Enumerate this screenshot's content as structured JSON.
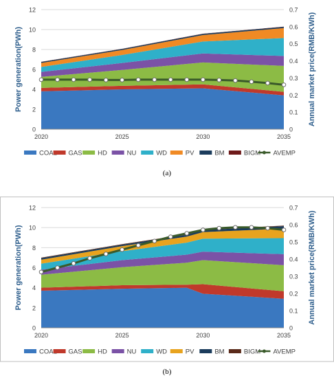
{
  "panels": [
    {
      "caption": "(a)",
      "chart_data": {
        "type": "area",
        "x": [
          2020,
          2021,
          2022,
          2023,
          2024,
          2025,
          2026,
          2027,
          2028,
          2029,
          2030,
          2031,
          2032,
          2033,
          2034,
          2035
        ],
        "xticks": [
          "2020",
          "2025",
          "2030",
          "2035"
        ],
        "xlim": [
          2020,
          2035
        ],
        "ylabel": "Power generation(PWh)",
        "ylim": [
          0,
          12
        ],
        "yticks": [
          "0",
          "2",
          "4",
          "6",
          "8",
          "10",
          "12"
        ],
        "y2label": "Annual market price(RMB/KWh)",
        "y2lim": [
          0,
          0.7
        ],
        "y2ticks": [
          "0",
          "0.1",
          "0.2",
          "0.3",
          "0.4",
          "0.5",
          "0.6",
          "0.7"
        ],
        "stacked_series": [
          {
            "name": "COAL",
            "color": "#3a78c0",
            "points": [
              [
                2020,
                3.8
              ],
              [
                2025,
                4.0
              ],
              [
                2030,
                4.1
              ],
              [
                2035,
                3.4
              ]
            ]
          },
          {
            "name": "GAS",
            "color": "#c0392b",
            "points": [
              [
                2020,
                0.35
              ],
              [
                2025,
                0.35
              ],
              [
                2030,
                0.4
              ],
              [
                2035,
                0.35
              ]
            ]
          },
          {
            "name": "HD",
            "color": "#8cbb45",
            "points": [
              [
                2020,
                1.1
              ],
              [
                2025,
                1.6
              ],
              [
                2030,
                2.2
              ],
              [
                2035,
                2.6
              ]
            ]
          },
          {
            "name": "NU",
            "color": "#7b52a6",
            "points": [
              [
                2020,
                0.5
              ],
              [
                2025,
                0.7
              ],
              [
                2030,
                0.9
              ],
              [
                2035,
                1.0
              ]
            ]
          },
          {
            "name": "WD",
            "color": "#2fb0c9",
            "points": [
              [
                2020,
                0.5
              ],
              [
                2025,
                0.8
              ],
              [
                2030,
                1.2
              ],
              [
                2035,
                1.8
              ]
            ]
          },
          {
            "name": "PV",
            "color": "#f08a24",
            "points": [
              [
                2020,
                0.4
              ],
              [
                2025,
                0.5
              ],
              [
                2030,
                0.65
              ],
              [
                2035,
                1.0
              ]
            ]
          },
          {
            "name": "BM",
            "color": "#1b3c5c",
            "points": [
              [
                2020,
                0.1
              ],
              [
                2025,
                0.1
              ],
              [
                2030,
                0.12
              ],
              [
                2035,
                0.12
              ]
            ]
          },
          {
            "name": "BIGM",
            "color": "#6e1a1a",
            "points": [
              [
                2020,
                0.02
              ],
              [
                2025,
                0.02
              ],
              [
                2030,
                0.02
              ],
              [
                2035,
                0.02
              ]
            ]
          }
        ],
        "price_series": {
          "name": "AVEMP",
          "axis": "right",
          "color": "#3a5a2a",
          "x": [
            2020,
            2021,
            2022,
            2023,
            2024,
            2025,
            2026,
            2027,
            2028,
            2029,
            2030,
            2031,
            2032,
            2033,
            2034,
            2035
          ],
          "values": [
            0.29,
            0.29,
            0.29,
            0.29,
            0.288,
            0.288,
            0.29,
            0.29,
            0.29,
            0.29,
            0.29,
            0.288,
            0.285,
            0.278,
            0.27,
            0.26
          ]
        },
        "legend": [
          "COAL",
          "GAS",
          "HD",
          "NU",
          "WD",
          "PV",
          "BM",
          "BIGM",
          "AVEMP"
        ],
        "legend_position": "bottom"
      }
    },
    {
      "caption": "(b)",
      "chart_data": {
        "type": "area",
        "x": [
          2020,
          2021,
          2022,
          2023,
          2024,
          2025,
          2026,
          2027,
          2028,
          2029,
          2030,
          2031,
          2032,
          2033,
          2034,
          2035
        ],
        "xticks": [
          "2020",
          "2025",
          "2030",
          "2035"
        ],
        "xlim": [
          2020,
          2035
        ],
        "ylabel": "Power generation(PWh)",
        "ylim": [
          0,
          12
        ],
        "yticks": [
          "0",
          "2",
          "4",
          "6",
          "8",
          "10",
          "12"
        ],
        "y2label": "Annual market price(RMB/KWh)",
        "y2lim": [
          0,
          0.7
        ],
        "y2ticks": [
          "0",
          "0.1",
          "0.2",
          "0.3",
          "0.4",
          "0.5",
          "0.6",
          "0.7"
        ],
        "stacked_series": [
          {
            "name": "COAL",
            "color": "#3a78c0",
            "points": [
              [
                2020,
                3.7
              ],
              [
                2025,
                3.9
              ],
              [
                2029,
                4.0
              ],
              [
                2030,
                3.4
              ],
              [
                2035,
                2.9
              ]
            ]
          },
          {
            "name": "GAS",
            "color": "#c0392b",
            "points": [
              [
                2020,
                0.3
              ],
              [
                2025,
                0.35
              ],
              [
                2029,
                0.3
              ],
              [
                2030,
                0.95
              ],
              [
                2035,
                0.75
              ]
            ]
          },
          {
            "name": "HD",
            "color": "#8cbb45",
            "points": [
              [
                2020,
                1.3
              ],
              [
                2025,
                1.8
              ],
              [
                2029,
                2.2
              ],
              [
                2030,
                2.4
              ],
              [
                2035,
                2.6
              ]
            ]
          },
          {
            "name": "NU",
            "color": "#7b52a6",
            "points": [
              [
                2020,
                0.5
              ],
              [
                2025,
                0.7
              ],
              [
                2029,
                0.8
              ],
              [
                2030,
                0.85
              ],
              [
                2035,
                1.1
              ]
            ]
          },
          {
            "name": "WD",
            "color": "#2fb0c9",
            "points": [
              [
                2020,
                0.6
              ],
              [
                2025,
                0.9
              ],
              [
                2029,
                1.2
              ],
              [
                2030,
                1.3
              ],
              [
                2035,
                1.6
              ]
            ]
          },
          {
            "name": "PV",
            "color": "#e8a31e",
            "points": [
              [
                2020,
                0.4
              ],
              [
                2025,
                0.5
              ],
              [
                2029,
                0.6
              ],
              [
                2030,
                0.65
              ],
              [
                2035,
                0.95
              ]
            ]
          },
          {
            "name": "BM",
            "color": "#1b3c5c",
            "points": [
              [
                2020,
                0.15
              ],
              [
                2025,
                0.15
              ],
              [
                2029,
                0.18
              ],
              [
                2030,
                0.2
              ],
              [
                2035,
                0.25
              ]
            ]
          },
          {
            "name": "BIGM",
            "color": "#5a2a1a",
            "points": [
              [
                2020,
                0.05
              ],
              [
                2025,
                0.05
              ],
              [
                2029,
                0.05
              ],
              [
                2030,
                0.05
              ],
              [
                2035,
                0.05
              ]
            ]
          }
        ],
        "price_series": {
          "name": "AVEMP",
          "axis": "right",
          "color": "#3a5a2a",
          "x": [
            2020,
            2021,
            2022,
            2023,
            2024,
            2025,
            2026,
            2027,
            2028,
            2029,
            2030,
            2031,
            2032,
            2033,
            2034,
            2035
          ],
          "values": [
            0.325,
            0.35,
            0.375,
            0.405,
            0.43,
            0.455,
            0.48,
            0.505,
            0.53,
            0.55,
            0.57,
            0.58,
            0.585,
            0.585,
            0.58,
            0.57
          ]
        },
        "legend": [
          "COAL",
          "GAS",
          "HD",
          "NU",
          "WD",
          "PV",
          "BM",
          "BIGM",
          "AVEMP"
        ],
        "legend_position": "bottom"
      }
    }
  ]
}
